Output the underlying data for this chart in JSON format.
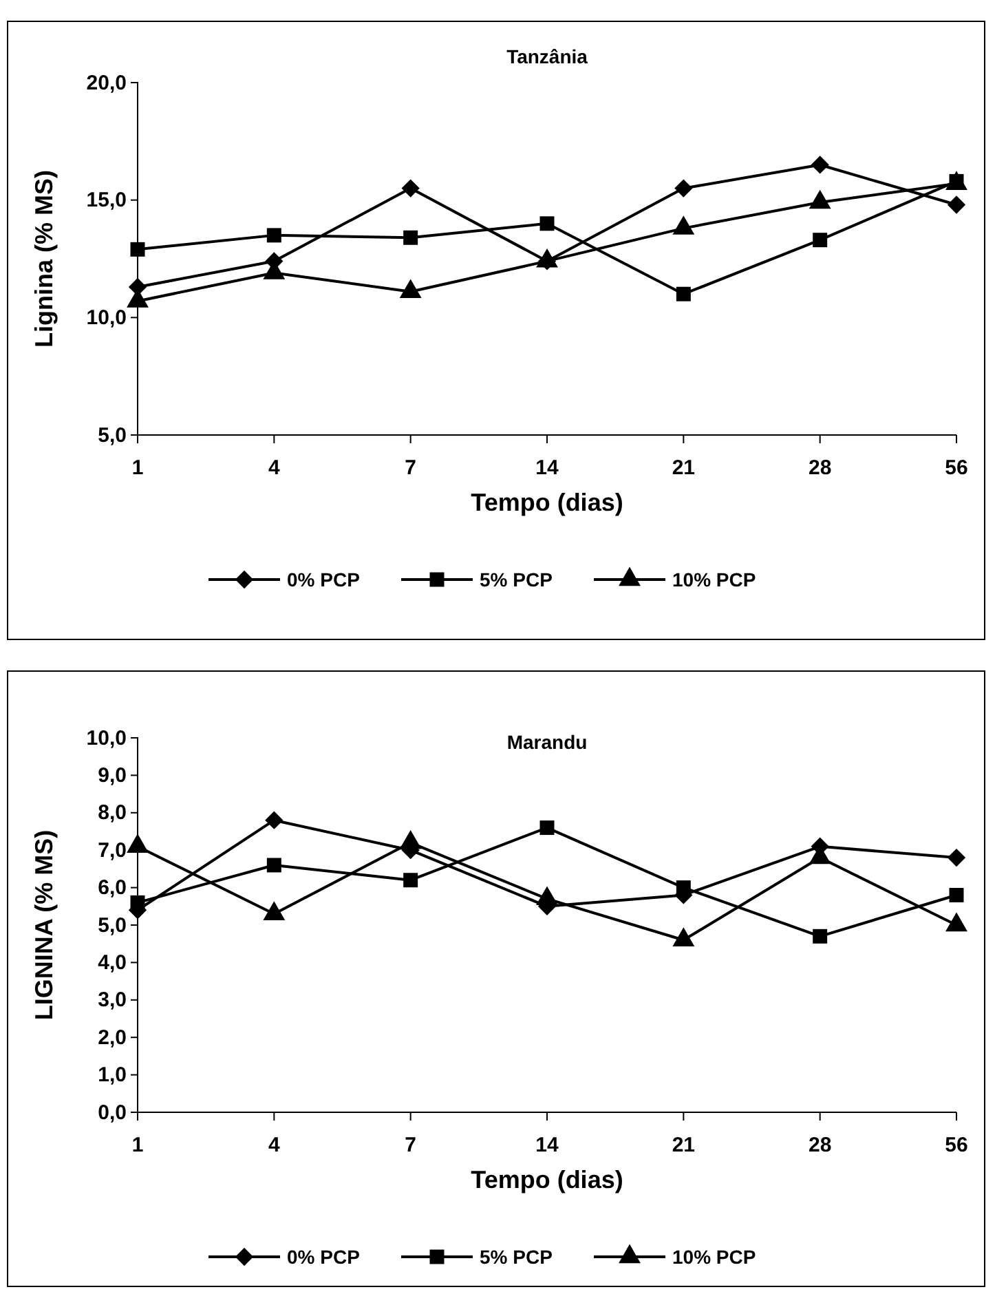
{
  "chart_data": [
    {
      "type": "line",
      "title": "Tanzânia",
      "xlabel": "Tempo (dias)",
      "ylabel": "Lignina (% MS)",
      "categories": [
        "1",
        "4",
        "7",
        "14",
        "21",
        "28",
        "56"
      ],
      "ylim": [
        5,
        20
      ],
      "yticks": [
        {
          "value": 5,
          "label": "5,0"
        },
        {
          "value": 10,
          "label": "10,0"
        },
        {
          "value": 15,
          "label": "15,0"
        },
        {
          "value": 20,
          "label": "20,0"
        }
      ],
      "grid": false,
      "legend": "bottom",
      "line_style": "solid",
      "series": [
        {
          "name": "0% PCP",
          "color": "#000000",
          "marker": "diamond",
          "values": [
            11.3,
            12.4,
            15.5,
            12.4,
            15.5,
            16.5,
            14.8
          ]
        },
        {
          "name": "5% PCP",
          "color": "#000000",
          "marker": "square",
          "values": [
            12.9,
            13.5,
            13.4,
            14.0,
            11.0,
            13.3,
            15.8
          ]
        },
        {
          "name": "10% PCP",
          "color": "#000000",
          "marker": "triangle",
          "values": [
            10.7,
            11.9,
            11.1,
            12.4,
            13.8,
            14.9,
            15.7
          ]
        }
      ]
    },
    {
      "type": "line",
      "title": "Marandu",
      "xlabel": "Tempo (dias)",
      "ylabel": "LIGNINA (% MS)",
      "categories": [
        "1",
        "4",
        "7",
        "14",
        "21",
        "28",
        "56"
      ],
      "ylim": [
        0,
        10
      ],
      "yticks": [
        {
          "value": 0,
          "label": "0,0"
        },
        {
          "value": 1,
          "label": "1,0"
        },
        {
          "value": 2,
          "label": "2,0"
        },
        {
          "value": 3,
          "label": "3,0"
        },
        {
          "value": 4,
          "label": "4,0"
        },
        {
          "value": 5,
          "label": "5,0"
        },
        {
          "value": 6,
          "label": "6,0"
        },
        {
          "value": 7,
          "label": "7,0"
        },
        {
          "value": 8,
          "label": "8,0"
        },
        {
          "value": 9,
          "label": "9,0"
        },
        {
          "value": 10,
          "label": "10,0"
        }
      ],
      "grid": false,
      "legend": "bottom",
      "line_style": "solid",
      "series": [
        {
          "name": "0% PCP",
          "color": "#000000",
          "marker": "diamond",
          "values": [
            5.4,
            7.8,
            7.0,
            5.5,
            5.8,
            7.1,
            6.8
          ]
        },
        {
          "name": "5% PCP",
          "color": "#000000",
          "marker": "square",
          "values": [
            5.6,
            6.6,
            6.2,
            7.6,
            6.0,
            4.7,
            5.8
          ]
        },
        {
          "name": "10% PCP",
          "color": "#000000",
          "marker": "triangle",
          "values": [
            7.1,
            5.3,
            7.2,
            5.7,
            4.6,
            6.8,
            5.0
          ]
        }
      ]
    }
  ]
}
